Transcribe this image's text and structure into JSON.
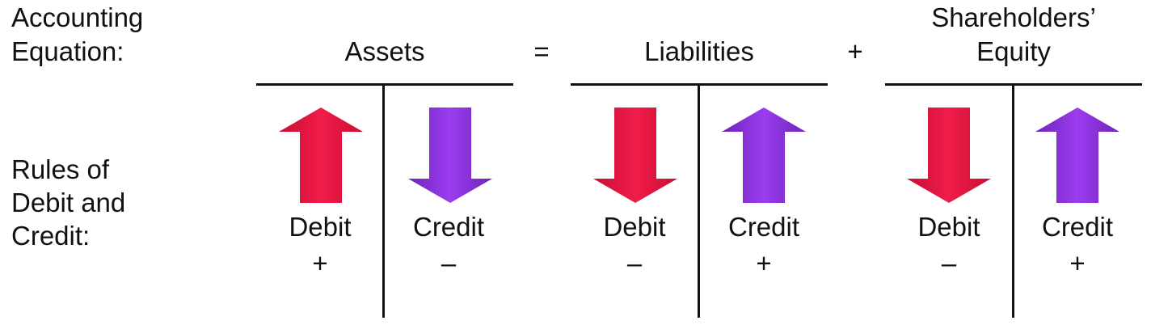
{
  "labels": {
    "equation_line1": "Accounting",
    "equation_line2": "Equation:",
    "rules_line1": "Rules of",
    "rules_line2": "Debit and",
    "rules_line3": "Credit:"
  },
  "operators": {
    "equals": "=",
    "plus": "+"
  },
  "accounts": [
    {
      "title_line1": "Assets",
      "title_line2": "",
      "debit_label": "Debit",
      "debit_sign": "+",
      "debit_direction": "up",
      "credit_label": "Credit",
      "credit_sign": "–",
      "credit_direction": "down"
    },
    {
      "title_line1": "Liabilities",
      "title_line2": "",
      "debit_label": "Debit",
      "debit_sign": "–",
      "debit_direction": "down",
      "credit_label": "Credit",
      "credit_sign": "+",
      "credit_direction": "up"
    },
    {
      "title_line1": "Shareholders’",
      "title_line2": "Equity",
      "debit_label": "Debit",
      "debit_sign": "–",
      "debit_direction": "down",
      "credit_label": "Credit",
      "credit_sign": "+",
      "credit_direction": "up"
    }
  ],
  "colors": {
    "debit_arrow": "#e8153f",
    "credit_arrow": "#8a2be2",
    "lines": "#111111",
    "text": "#111111"
  }
}
